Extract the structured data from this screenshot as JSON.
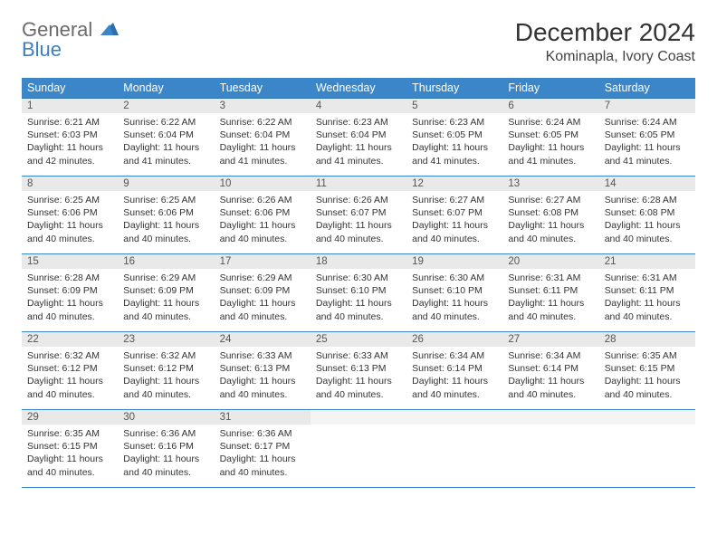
{
  "logo": {
    "word1": "General",
    "word2": "Blue"
  },
  "title": "December 2024",
  "location": "Kominapla, Ivory Coast",
  "colors": {
    "header_bg": "#3a86c8",
    "header_text": "#ffffff",
    "daynum_bg": "#e9e9e9",
    "row_border": "#3a86c8",
    "logo_gray": "#6b6b6b",
    "logo_blue": "#3a7fbf"
  },
  "day_headers": [
    "Sunday",
    "Monday",
    "Tuesday",
    "Wednesday",
    "Thursday",
    "Friday",
    "Saturday"
  ],
  "weeks": [
    [
      {
        "n": "1",
        "sr": "6:21 AM",
        "ss": "6:03 PM",
        "dl": "11 hours and 42 minutes."
      },
      {
        "n": "2",
        "sr": "6:22 AM",
        "ss": "6:04 PM",
        "dl": "11 hours and 41 minutes."
      },
      {
        "n": "3",
        "sr": "6:22 AM",
        "ss": "6:04 PM",
        "dl": "11 hours and 41 minutes."
      },
      {
        "n": "4",
        "sr": "6:23 AM",
        "ss": "6:04 PM",
        "dl": "11 hours and 41 minutes."
      },
      {
        "n": "5",
        "sr": "6:23 AM",
        "ss": "6:05 PM",
        "dl": "11 hours and 41 minutes."
      },
      {
        "n": "6",
        "sr": "6:24 AM",
        "ss": "6:05 PM",
        "dl": "11 hours and 41 minutes."
      },
      {
        "n": "7",
        "sr": "6:24 AM",
        "ss": "6:05 PM",
        "dl": "11 hours and 41 minutes."
      }
    ],
    [
      {
        "n": "8",
        "sr": "6:25 AM",
        "ss": "6:06 PM",
        "dl": "11 hours and 40 minutes."
      },
      {
        "n": "9",
        "sr": "6:25 AM",
        "ss": "6:06 PM",
        "dl": "11 hours and 40 minutes."
      },
      {
        "n": "10",
        "sr": "6:26 AM",
        "ss": "6:06 PM",
        "dl": "11 hours and 40 minutes."
      },
      {
        "n": "11",
        "sr": "6:26 AM",
        "ss": "6:07 PM",
        "dl": "11 hours and 40 minutes."
      },
      {
        "n": "12",
        "sr": "6:27 AM",
        "ss": "6:07 PM",
        "dl": "11 hours and 40 minutes."
      },
      {
        "n": "13",
        "sr": "6:27 AM",
        "ss": "6:08 PM",
        "dl": "11 hours and 40 minutes."
      },
      {
        "n": "14",
        "sr": "6:28 AM",
        "ss": "6:08 PM",
        "dl": "11 hours and 40 minutes."
      }
    ],
    [
      {
        "n": "15",
        "sr": "6:28 AM",
        "ss": "6:09 PM",
        "dl": "11 hours and 40 minutes."
      },
      {
        "n": "16",
        "sr": "6:29 AM",
        "ss": "6:09 PM",
        "dl": "11 hours and 40 minutes."
      },
      {
        "n": "17",
        "sr": "6:29 AM",
        "ss": "6:09 PM",
        "dl": "11 hours and 40 minutes."
      },
      {
        "n": "18",
        "sr": "6:30 AM",
        "ss": "6:10 PM",
        "dl": "11 hours and 40 minutes."
      },
      {
        "n": "19",
        "sr": "6:30 AM",
        "ss": "6:10 PM",
        "dl": "11 hours and 40 minutes."
      },
      {
        "n": "20",
        "sr": "6:31 AM",
        "ss": "6:11 PM",
        "dl": "11 hours and 40 minutes."
      },
      {
        "n": "21",
        "sr": "6:31 AM",
        "ss": "6:11 PM",
        "dl": "11 hours and 40 minutes."
      }
    ],
    [
      {
        "n": "22",
        "sr": "6:32 AM",
        "ss": "6:12 PM",
        "dl": "11 hours and 40 minutes."
      },
      {
        "n": "23",
        "sr": "6:32 AM",
        "ss": "6:12 PM",
        "dl": "11 hours and 40 minutes."
      },
      {
        "n": "24",
        "sr": "6:33 AM",
        "ss": "6:13 PM",
        "dl": "11 hours and 40 minutes."
      },
      {
        "n": "25",
        "sr": "6:33 AM",
        "ss": "6:13 PM",
        "dl": "11 hours and 40 minutes."
      },
      {
        "n": "26",
        "sr": "6:34 AM",
        "ss": "6:14 PM",
        "dl": "11 hours and 40 minutes."
      },
      {
        "n": "27",
        "sr": "6:34 AM",
        "ss": "6:14 PM",
        "dl": "11 hours and 40 minutes."
      },
      {
        "n": "28",
        "sr": "6:35 AM",
        "ss": "6:15 PM",
        "dl": "11 hours and 40 minutes."
      }
    ],
    [
      {
        "n": "29",
        "sr": "6:35 AM",
        "ss": "6:15 PM",
        "dl": "11 hours and 40 minutes."
      },
      {
        "n": "30",
        "sr": "6:36 AM",
        "ss": "6:16 PM",
        "dl": "11 hours and 40 minutes."
      },
      {
        "n": "31",
        "sr": "6:36 AM",
        "ss": "6:17 PM",
        "dl": "11 hours and 40 minutes."
      },
      null,
      null,
      null,
      null
    ]
  ],
  "labels": {
    "sunrise": "Sunrise:",
    "sunset": "Sunset:",
    "daylight": "Daylight:"
  }
}
